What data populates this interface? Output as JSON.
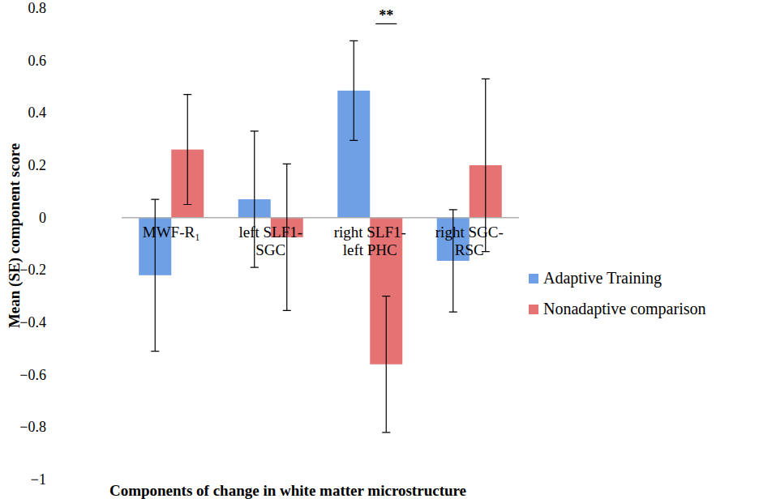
{
  "chart_data": {
    "type": "bar",
    "x_label": "Components of change in white matter microstructure",
    "y_label": "Mean (SE) component score",
    "categories": [
      "MWF-R₁",
      "left SLF1-SGC",
      "right SLF1-left PHC",
      "right SGC-RSC"
    ],
    "series": [
      {
        "name": "Adaptive Training",
        "color": "#6fa0e6",
        "values": [
          -0.22,
          0.07,
          0.485,
          -0.165
        ],
        "errors": [
          0.29,
          0.26,
          0.19,
          0.195
        ]
      },
      {
        "name": "Nonadaptive comparison",
        "color": "#e57373",
        "values": [
          0.26,
          -0.075,
          -0.56,
          0.2
        ],
        "errors": [
          0.21,
          0.28,
          0.26,
          0.33
        ]
      }
    ],
    "ylim": [
      -1,
      0.8
    ],
    "yticks": [
      0.8,
      0.6,
      0.4,
      0.2,
      0,
      {
        "value": -0.2,
        "label": "−0.2"
      },
      {
        "value": -0.4,
        "label": "−0.4"
      },
      {
        "value": -0.6,
        "label": "−0.6"
      },
      {
        "value": -0.8,
        "label": "−0.8"
      },
      {
        "value": -1,
        "label": "−1"
      }
    ],
    "legend": "right",
    "annotations": [
      {
        "text": "**",
        "x": 2,
        "y": 0.74
      }
    ]
  }
}
